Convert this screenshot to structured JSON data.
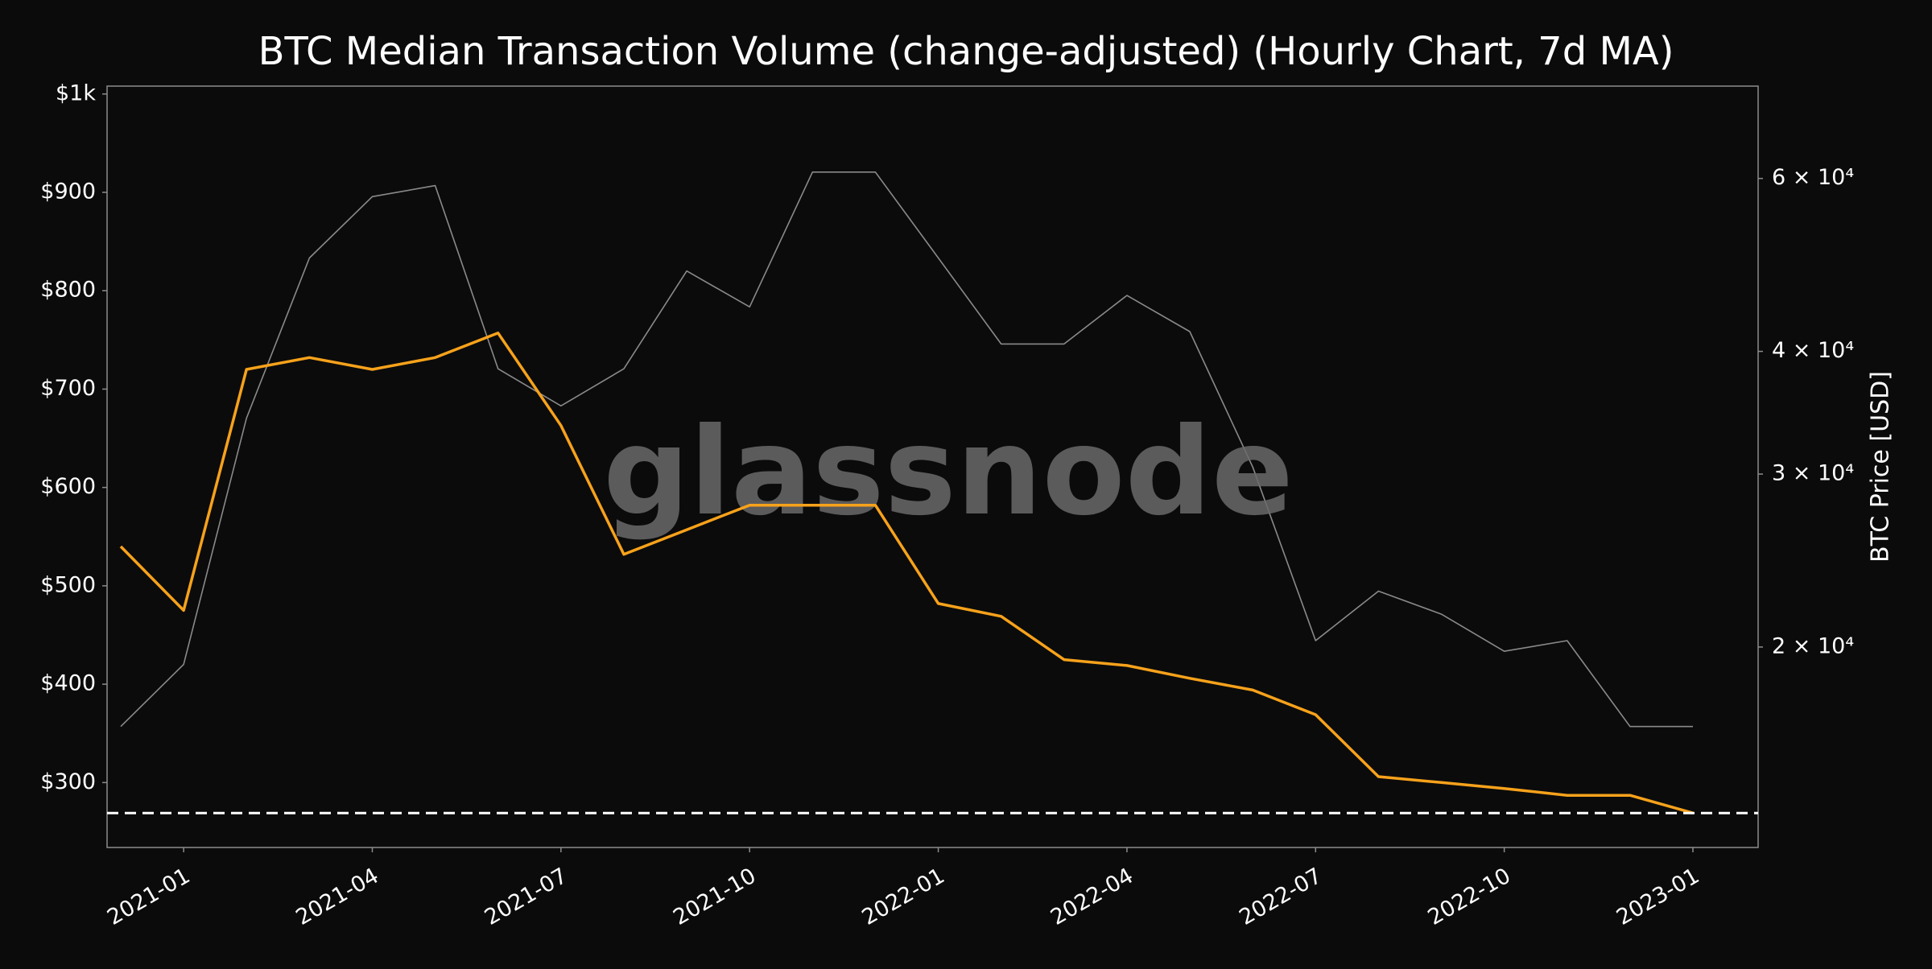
{
  "chart_data": {
    "type": "line",
    "title": "BTC Median Transaction Volume (change-adjusted) (Hourly Chart, 7d MA)",
    "y2label": "BTC Price [USD]",
    "watermark": "glassnode",
    "x": [
      "2020-12",
      "2021-01",
      "2021-02",
      "2021-03",
      "2021-04",
      "2021-05",
      "2021-06",
      "2021-07",
      "2021-08",
      "2021-09",
      "2021-10",
      "2021-11",
      "2021-12",
      "2022-01",
      "2022-02",
      "2022-03",
      "2022-04",
      "2022-05",
      "2022-06",
      "2022-07",
      "2022-08",
      "2022-09",
      "2022-10",
      "2022-11",
      "2022-12",
      "2023-01"
    ],
    "xlim": [
      "2020-12",
      "2023-01"
    ],
    "xticks": [
      "2021-01",
      "2021-04",
      "2021-07",
      "2021-10",
      "2022-01",
      "2022-04",
      "2022-07",
      "2022-10",
      "2023-01"
    ],
    "series": [
      {
        "name": "BTC Price",
        "color": "#8a8a8a",
        "axis": "y2",
        "values": [
          16600,
          19200,
          34200,
          49800,
          57500,
          59000,
          38400,
          35200,
          38400,
          48300,
          44400,
          60900,
          60900,
          49800,
          40700,
          40700,
          45600,
          41900,
          30500,
          20300,
          22800,
          21600,
          19800,
          20300,
          16600,
          16600
        ]
      },
      {
        "name": "Median Transaction Volume",
        "color": "#f7a21b",
        "axis": "y",
        "values": [
          540,
          475,
          720,
          732,
          720,
          732,
          757,
          663,
          532,
          557,
          582,
          582,
          582,
          482,
          469,
          425,
          419,
          406,
          394,
          369,
          306,
          300,
          294,
          287,
          287,
          269
        ]
      }
    ],
    "hline": 269,
    "ylim": [
      234,
      1008
    ],
    "yticks": [
      {
        "value": 300,
        "label": "$300"
      },
      {
        "value": 400,
        "label": "$400"
      },
      {
        "value": 500,
        "label": "$500"
      },
      {
        "value": 600,
        "label": "$600"
      },
      {
        "value": 700,
        "label": "$700"
      },
      {
        "value": 800,
        "label": "$800"
      },
      {
        "value": 900,
        "label": "$900"
      },
      {
        "value": 1000,
        "label": "$1k"
      }
    ],
    "y2scale": "log",
    "y2lim": [
      12500,
      74500
    ],
    "y2ticks": [
      {
        "value": 20000,
        "label": "2 × 10⁴"
      },
      {
        "value": 30000,
        "label": "3 × 10⁴"
      },
      {
        "value": 40000,
        "label": "4 × 10⁴"
      },
      {
        "value": 60000,
        "label": "6 × 10⁴"
      }
    ]
  }
}
